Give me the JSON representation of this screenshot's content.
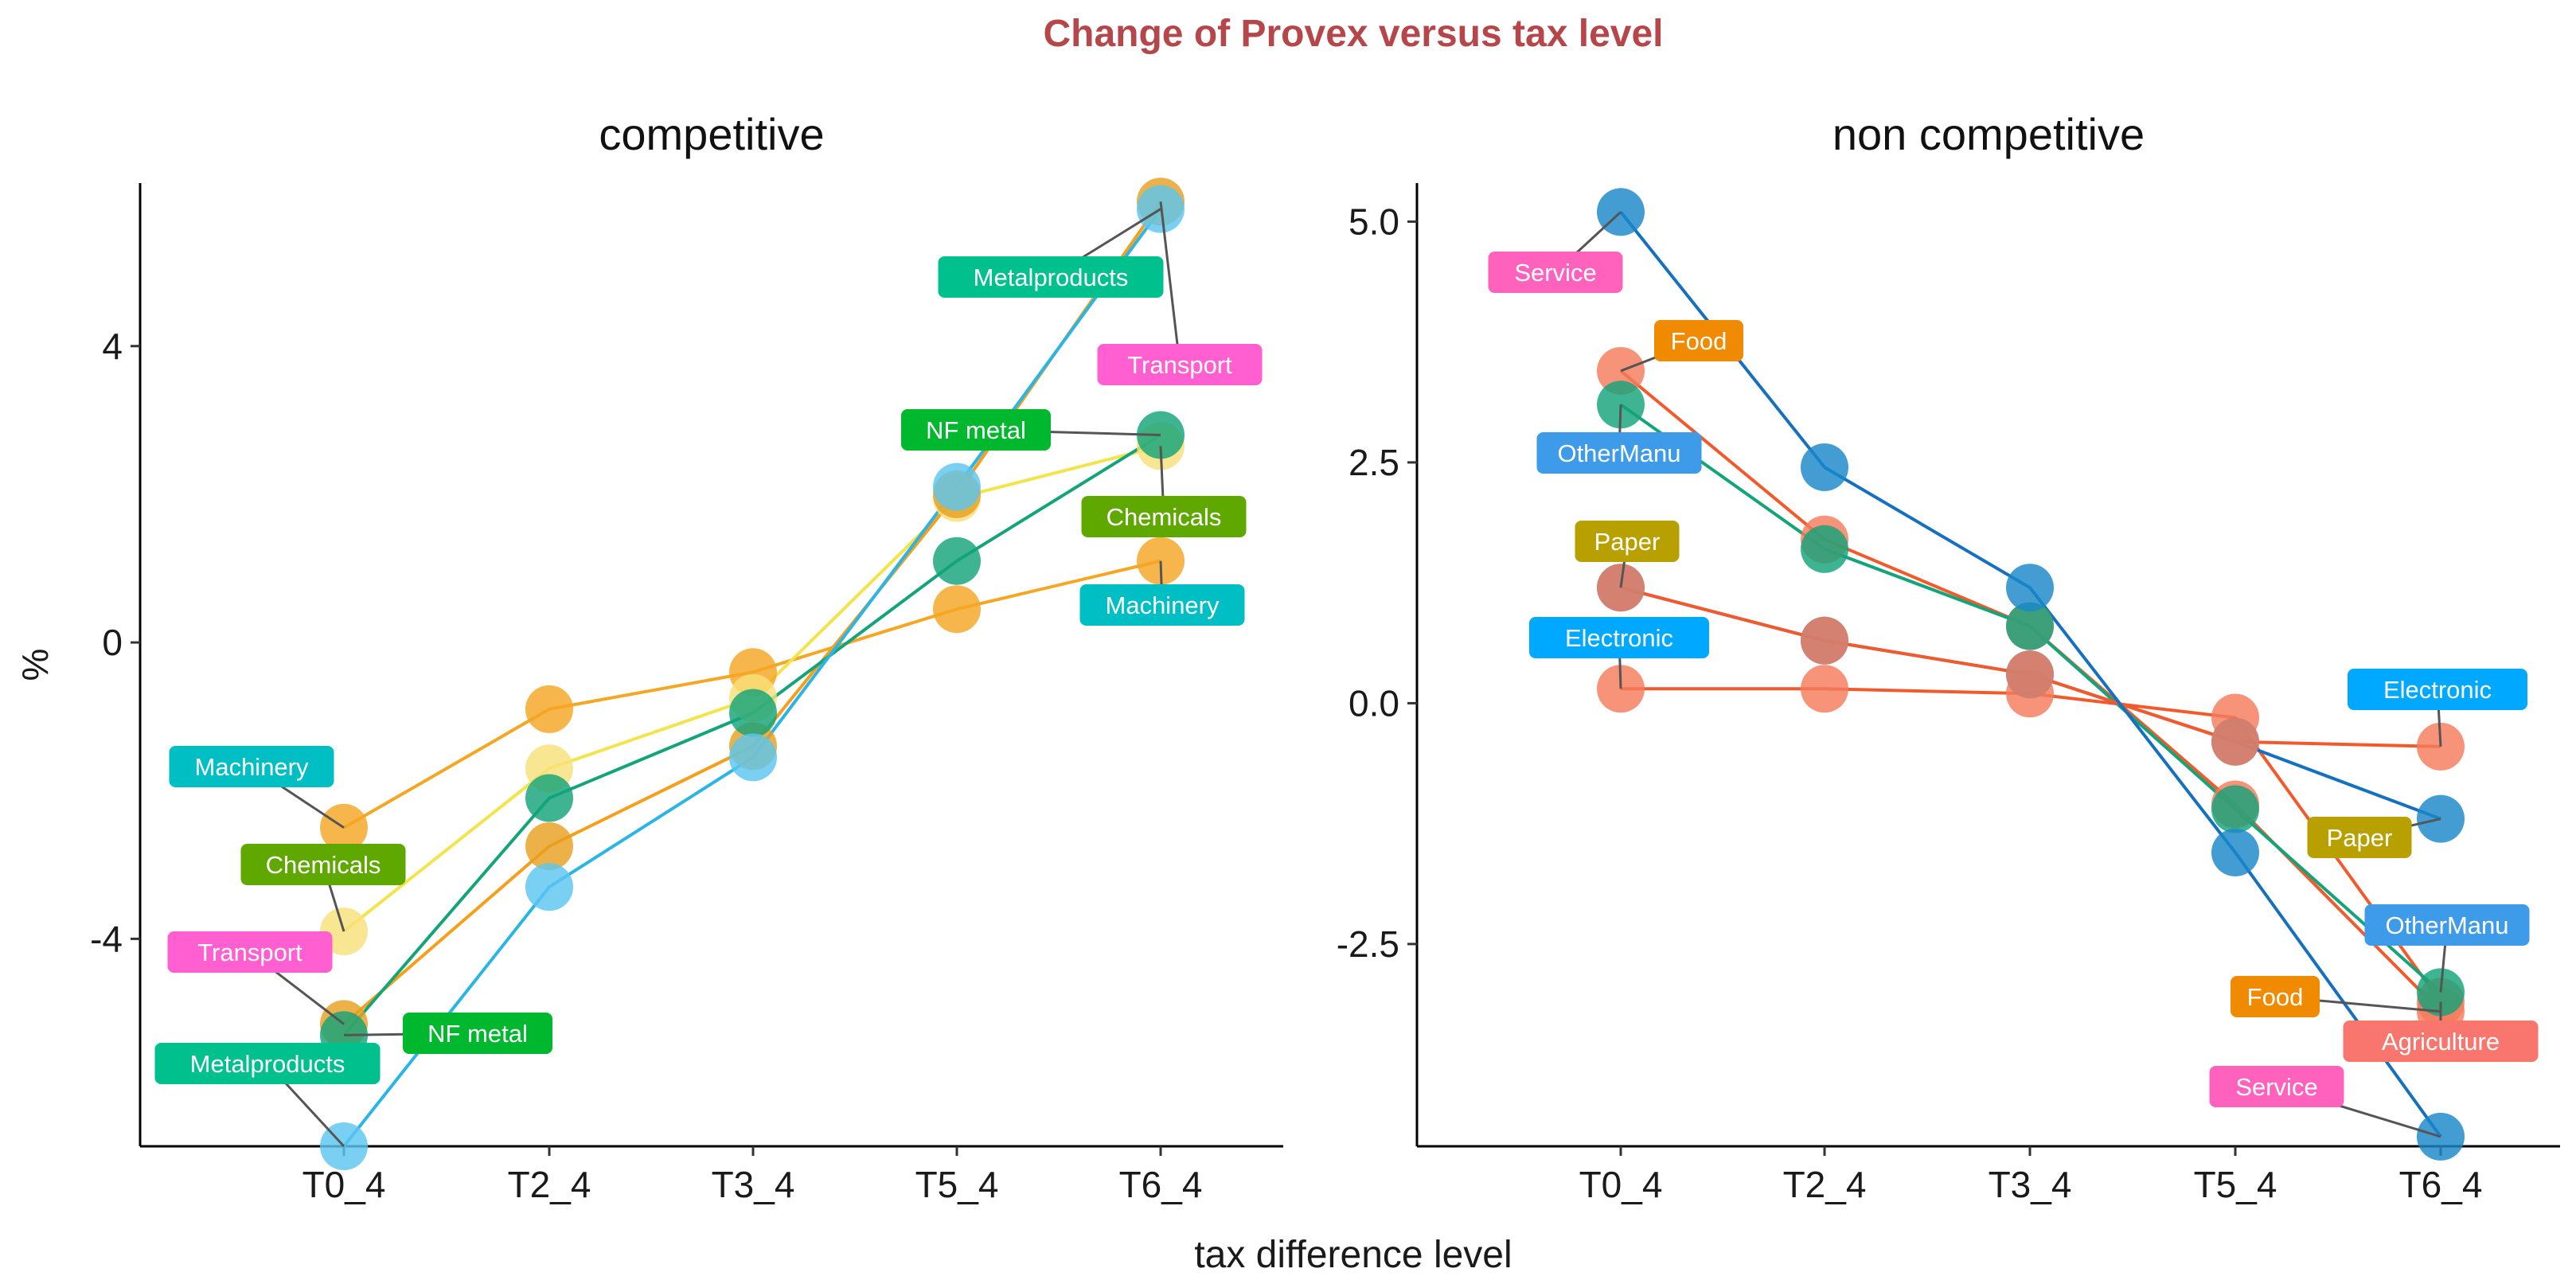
{
  "chart_data": {
    "type": "line",
    "title": "Change of Provex versus tax level",
    "xlabel": "tax difference level",
    "ylabel": "%",
    "categories": [
      "T0_4",
      "T2_4",
      "T3_4",
      "T5_4",
      "T6_4"
    ],
    "colors": {
      "title": "#b5474b",
      "Agriculture": "#f8766d",
      "Food": "#f08a00",
      "Paper": "#b8a000",
      "Chemicals": "#5fa800",
      "NF metal": "#00b82e",
      "Metalproducts": "#00c08d",
      "Machinery": "#00bfc4",
      "Electronic": "#00a9ff",
      "OtherManu": "#3d9be9",
      "Transport": "#ff5fd0",
      "Service": "#ff62bc"
    },
    "panels": [
      {
        "title": "competitive",
        "ylim": [
          -6.8,
          6.2
        ],
        "yticks": [
          -4,
          0,
          4
        ],
        "series": [
          {
            "name": "Machinery",
            "line_color": "#f5a623",
            "marker_color": "#f5a623",
            "values": [
              -2.5,
              -0.9,
              -0.4,
              0.45,
              1.1
            ]
          },
          {
            "name": "Chemicals",
            "line_color": "#f2e44a",
            "marker_color": "#f8e07a",
            "values": [
              -3.9,
              -1.7,
              -0.75,
              1.95,
              2.65
            ]
          },
          {
            "name": "Transport",
            "line_color": "#f59f1b",
            "marker_color": "#e8a020",
            "values": [
              -5.15,
              -2.75,
              -1.4,
              2.0,
              5.95
            ]
          },
          {
            "name": "NF metal",
            "line_color": "#14a47a",
            "marker_color": "#14a47a",
            "values": [
              -5.3,
              -2.1,
              -0.95,
              1.1,
              2.8
            ]
          },
          {
            "name": "Metalproducts",
            "line_color": "#2bb5e6",
            "marker_color": "#5bc6ef",
            "values": [
              -6.8,
              -3.3,
              -1.55,
              2.1,
              5.85
            ]
          }
        ],
        "labels": [
          {
            "text": "Machinery",
            "series": "Machinery",
            "cat": 0
          },
          {
            "text": "Chemicals",
            "series": "Chemicals",
            "cat": 0
          },
          {
            "text": "Transport",
            "series": "Transport",
            "cat": 0
          },
          {
            "text": "Metalproducts",
            "series": "Metalproducts",
            "cat": 0
          },
          {
            "text": "NF metal",
            "series": "NF metal",
            "cat": 0
          },
          {
            "text": "Metalproducts",
            "series": "Metalproducts",
            "cat": 4
          },
          {
            "text": "Transport",
            "series": "Transport",
            "cat": 4
          },
          {
            "text": "NF metal",
            "series": "NF metal",
            "cat": 4
          },
          {
            "text": "Chemicals",
            "series": "Chemicals",
            "cat": 4
          },
          {
            "text": "Machinery",
            "series": "Machinery",
            "cat": 4
          }
        ]
      },
      {
        "title": "non competitive",
        "ylim": [
          -4.6,
          5.4
        ],
        "yticks": [
          -2.5,
          0.0,
          2.5,
          5.0
        ],
        "series": [
          {
            "name": "Agriculture",
            "line_color": "#f25a2c",
            "marker_color": "#f47b5c",
            "values": [
              0.15,
              0.15,
              0.1,
              -0.15,
              -3.1
            ]
          },
          {
            "name": "Electronic",
            "line_color": "#1670c0",
            "marker_color": "#1a88c9",
            "values": [
              1.2,
              0.65,
              0.3,
              -0.4,
              -1.2
            ]
          },
          {
            "name": "Food",
            "line_color": "#f25a2c",
            "marker_color": "#f47b5c",
            "values": [
              3.45,
              1.7,
              0.8,
              -1.05,
              -3.2
            ]
          },
          {
            "name": "OtherManu",
            "line_color": "#14a47a",
            "marker_color": "#14a47a",
            "values": [
              3.1,
              1.6,
              0.8,
              -1.1,
              -3.0
            ]
          },
          {
            "name": "Paper",
            "line_color": "#f25a2c",
            "marker_color": "#f47b5c",
            "values": [
              1.2,
              0.65,
              0.3,
              -0.4,
              -0.45
            ]
          },
          {
            "name": "Service",
            "line_color": "#1670c0",
            "marker_color": "#1a88c9",
            "values": [
              5.1,
              2.45,
              1.2,
              -1.55,
              -4.5
            ]
          }
        ],
        "labels": [
          {
            "text": "Service",
            "series": "Service",
            "cat": 0
          },
          {
            "text": "Food",
            "series": "Food",
            "cat": 0
          },
          {
            "text": "OtherManu",
            "series": "OtherManu",
            "cat": 0
          },
          {
            "text": "Paper",
            "series": "Paper",
            "cat": 0
          },
          {
            "text": "Electronic",
            "series": "Agriculture",
            "cat": 0
          },
          {
            "text": "Electronic",
            "series": "Paper",
            "cat": 4
          },
          {
            "text": "Paper",
            "series": "Electronic",
            "cat": 4
          },
          {
            "text": "OtherManu",
            "series": "OtherManu",
            "cat": 4
          },
          {
            "text": "Food",
            "series": "Food",
            "cat": 4
          },
          {
            "text": "Agriculture",
            "series": "Agriculture",
            "cat": 4
          },
          {
            "text": "Service",
            "series": "Service",
            "cat": 4
          }
        ]
      }
    ]
  }
}
